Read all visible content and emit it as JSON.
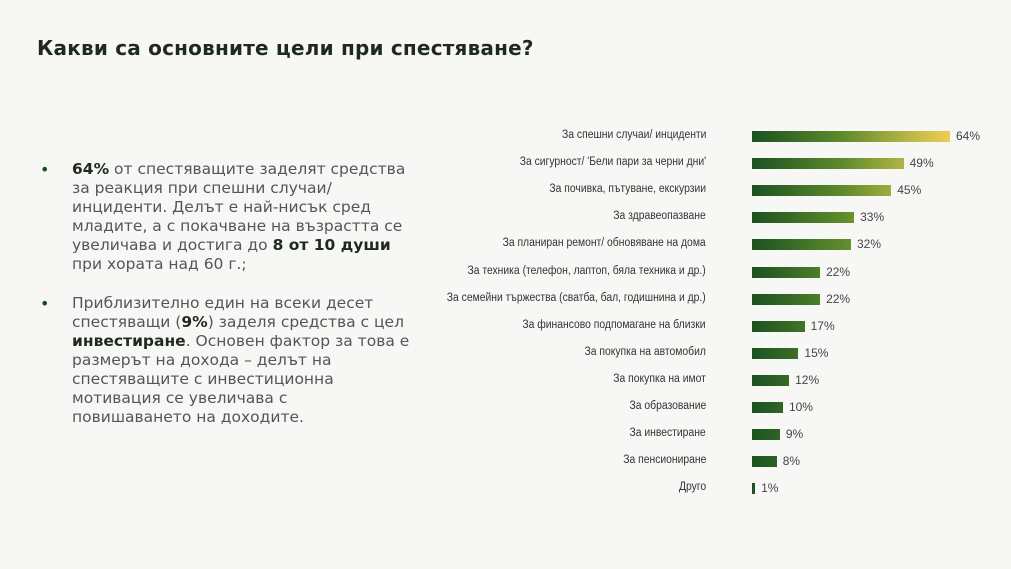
{
  "title": "Какви са основните цели при спестяване?",
  "bullets": [
    {
      "parts": [
        {
          "text": "64%",
          "bold": true
        },
        {
          "text": " от спестяващите заделят средства за реакция при спешни случаи/инциденти. Делът е най-нисък сред младите, а с покачване на възрастта се увеличава и достига до ",
          "bold": false
        },
        {
          "text": "8 от 10 души",
          "bold": true
        },
        {
          "text": " при хората над 60 г.;",
          "bold": false
        }
      ]
    },
    {
      "parts": [
        {
          "text": "Приблизително един на всеки десет спестяващи (",
          "bold": false
        },
        {
          "text": "9%",
          "bold": true
        },
        {
          "text": ") заделя средства с цел ",
          "bold": false
        },
        {
          "text": "инвестиране",
          "bold": true
        },
        {
          "text": ". Основен фактор за това е размерът на дохода – делът на спестяващите с инвестиционна мотивация се увеличава с повишаването на доходите.",
          "bold": false
        }
      ]
    }
  ],
  "colors": {
    "bar_start": "#1b5220",
    "bar_end": "#f0cc55",
    "title": "#1f2a1f"
  },
  "chart_data": {
    "type": "bar",
    "orientation": "horizontal",
    "categories": [
      "За спешни случаи/ инциденти",
      "За сигурност/ 'Бели пари за черни дни'",
      "За почивка, пътуване, екскурзии",
      "За здравеопазване",
      "За планиран ремонт/ обновяване на дома",
      "За техника (телефон, лаптоп, бяла техника и др.)",
      "За семейни тържества (сватба, бал, годишнина и др.)",
      "За финансово подпомагане на близки",
      "За покупка на автомобил",
      "За покупка на имот",
      "За образование",
      "За инвестиране",
      "За пенсиониране",
      "Друго"
    ],
    "values": [
      64,
      49,
      45,
      33,
      32,
      22,
      22,
      17,
      15,
      12,
      10,
      9,
      8,
      1
    ],
    "value_labels": [
      "64%",
      "49%",
      "45%",
      "33%",
      "32%",
      "22%",
      "22%",
      "17%",
      "15%",
      "12%",
      "10%",
      "9%",
      "8%",
      "1%"
    ],
    "unit": "%",
    "grid": false,
    "legend": "none"
  }
}
